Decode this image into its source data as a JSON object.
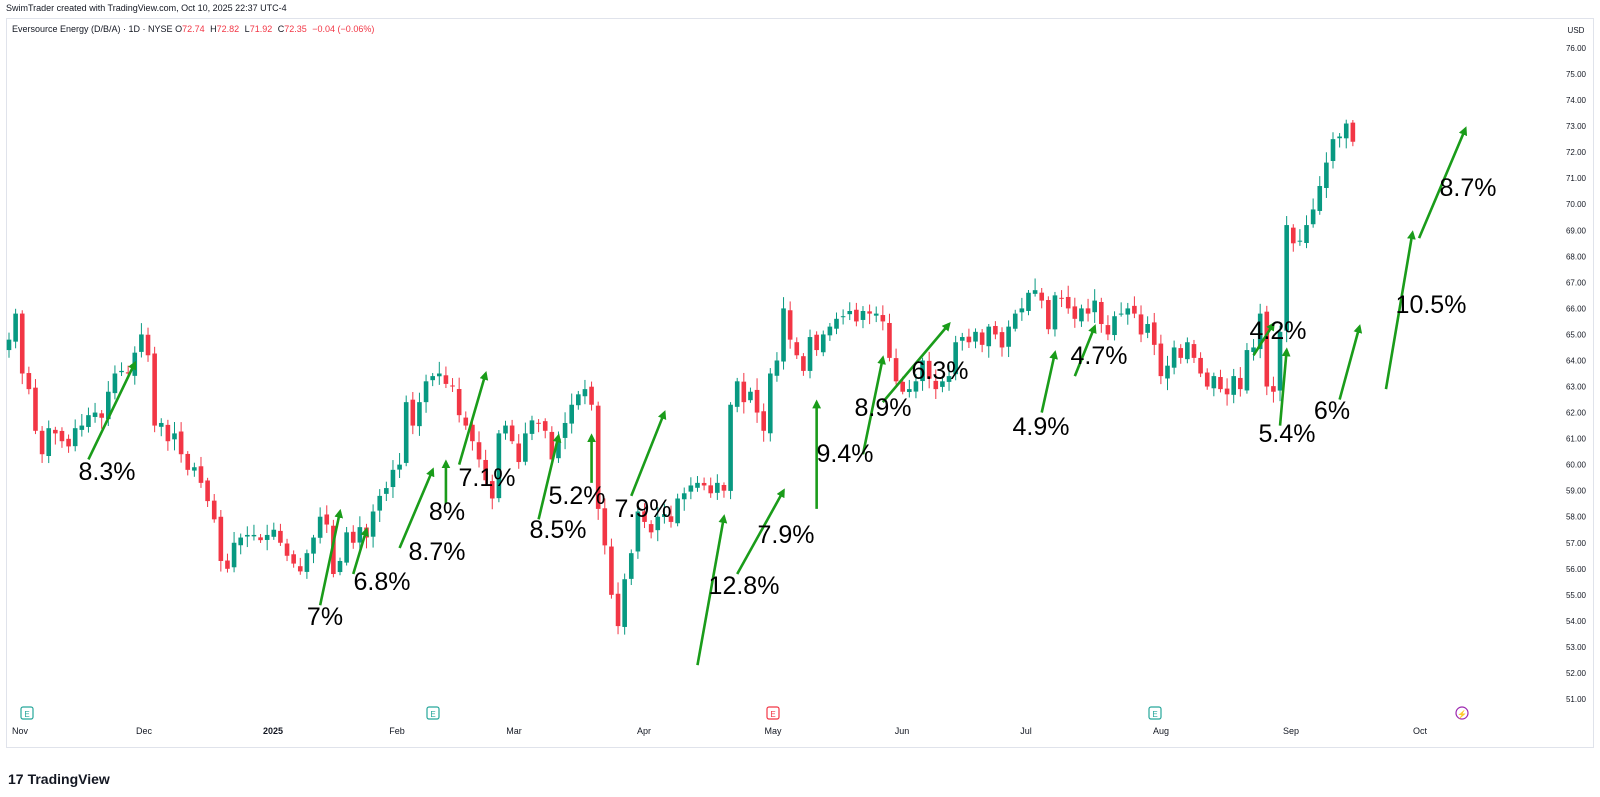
{
  "header": {
    "credit": "SwimTrader created with TradingView.com, Oct 10, 2025 22:37 UTC-4",
    "symbol": "Eversource Energy (D/B/A) · 1D · NYSE",
    "ohlc": {
      "o_label": "O",
      "o": "72.74",
      "h_label": "H",
      "h": "72.82",
      "l_label": "L",
      "l": "71.92",
      "c_label": "C",
      "c": "72.35",
      "change": "−0.04 (−0.06%)"
    }
  },
  "currency_label": "USD",
  "brand": {
    "name": "TradingView",
    "logo_mark": "17"
  },
  "colors": {
    "up": "#089981",
    "down": "#f23645",
    "arrow": "#1a9c1a",
    "grid": "#f0f3fa",
    "event_green": "#26a69a",
    "event_red": "#f23645",
    "event_purple": "#9c27b0"
  },
  "chart_data": {
    "type": "candlestick",
    "ylim": [
      50.3,
      76.7
    ],
    "y_ticks": [
      51,
      52,
      53,
      54,
      55,
      56,
      57,
      58,
      59,
      60,
      61,
      62,
      63,
      64,
      65,
      66,
      67,
      68,
      69,
      70,
      71,
      72,
      73,
      74,
      75,
      76
    ],
    "x_ticks": [
      "Nov",
      "Dec",
      "2025",
      "Feb",
      "Mar",
      "Apr",
      "May",
      "Jun",
      "Jul",
      "Aug",
      "Sep",
      "Oct"
    ],
    "grid": "off",
    "closes": [
      64.8,
      65.8,
      63.5,
      62.9,
      61.3,
      60.4,
      61.4,
      61.2,
      60.9,
      60.7,
      61.4,
      61.5,
      61.9,
      62.0,
      61.8,
      62.8,
      63.5,
      63.6,
      63.5,
      64.3,
      65.0,
      64.2,
      61.5,
      61.6,
      60.9,
      61.2,
      60.4,
      59.8,
      59.9,
      59.3,
      58.6,
      57.9,
      56.3,
      56.0,
      57.0,
      57.2,
      57.3,
      57.3,
      57.1,
      57.3,
      57.5,
      57.0,
      56.5,
      56.2,
      55.9,
      56.6,
      57.2,
      58.0,
      57.7,
      55.8,
      56.3,
      57.4,
      57.0,
      57.6,
      57.2,
      58.2,
      58.8,
      59.1,
      59.8,
      60.0,
      62.4,
      61.5,
      62.4,
      63.2,
      63.4,
      63.5,
      63.1,
      63.0,
      61.9,
      61.5,
      60.9,
      60.2,
      59.4,
      58.7,
      61.2,
      61.5,
      60.9,
      60.1,
      61.2,
      61.7,
      61.6,
      61.3,
      60.2,
      61.0,
      61.6,
      62.3,
      62.7,
      62.9,
      62.3,
      58.3,
      56.9,
      55.0,
      53.8,
      55.6,
      56.6,
      58.2,
      57.8,
      57.4,
      58.0,
      58.1,
      57.8,
      58.7,
      58.9,
      59.2,
      59.3,
      59.2,
      58.9,
      59.3,
      59.0,
      62.3,
      63.2,
      62.4,
      62.8,
      62.0,
      61.3,
      63.5,
      64.0,
      66.0,
      64.8,
      64.2,
      63.6,
      64.9,
      64.4,
      65.0,
      65.3,
      65.6,
      65.7,
      65.9,
      65.5,
      65.9,
      65.8,
      65.8,
      65.5,
      64.1,
      63.2,
      62.8,
      62.9,
      63.2,
      64.0,
      63.3,
      62.9,
      63.2,
      63.4,
      64.7,
      64.9,
      64.7,
      65.1,
      64.6,
      65.3,
      65.0,
      64.5,
      65.3,
      65.8,
      66.0,
      66.6,
      66.7,
      66.3,
      65.2,
      66.5,
      66.4,
      66.0,
      65.6,
      66.0,
      65.8,
      66.3,
      65.4,
      65.0,
      65.7,
      65.8,
      66.0,
      65.8,
      65.0,
      65.4,
      64.6,
      63.4,
      63.8,
      64.5,
      64.1,
      64.7,
      64.1,
      63.5,
      63.0,
      63.4,
      62.9,
      62.7,
      63.4,
      62.9,
      64.4,
      64.5,
      65.8,
      63.0,
      62.8,
      65.1,
      69.2,
      68.5,
      68.6,
      69.2,
      69.8,
      70.7,
      71.6,
      72.5,
      72.6,
      73.1,
      72.4
    ],
    "annotations": [
      "8.3%",
      "7%",
      "6.8%",
      "8.7%",
      "8%",
      "7.1%",
      "8.5%",
      "5.2%",
      "7.9%",
      "12.8%",
      "7.9%",
      "9.4%",
      "8.9%",
      "6.3%",
      "4.9%",
      "4.7%",
      "4.2%",
      "5.4%",
      "6%",
      "10.5%",
      "8.7%"
    ],
    "events": [
      "E",
      "E",
      "E",
      "E",
      "⚡"
    ]
  }
}
